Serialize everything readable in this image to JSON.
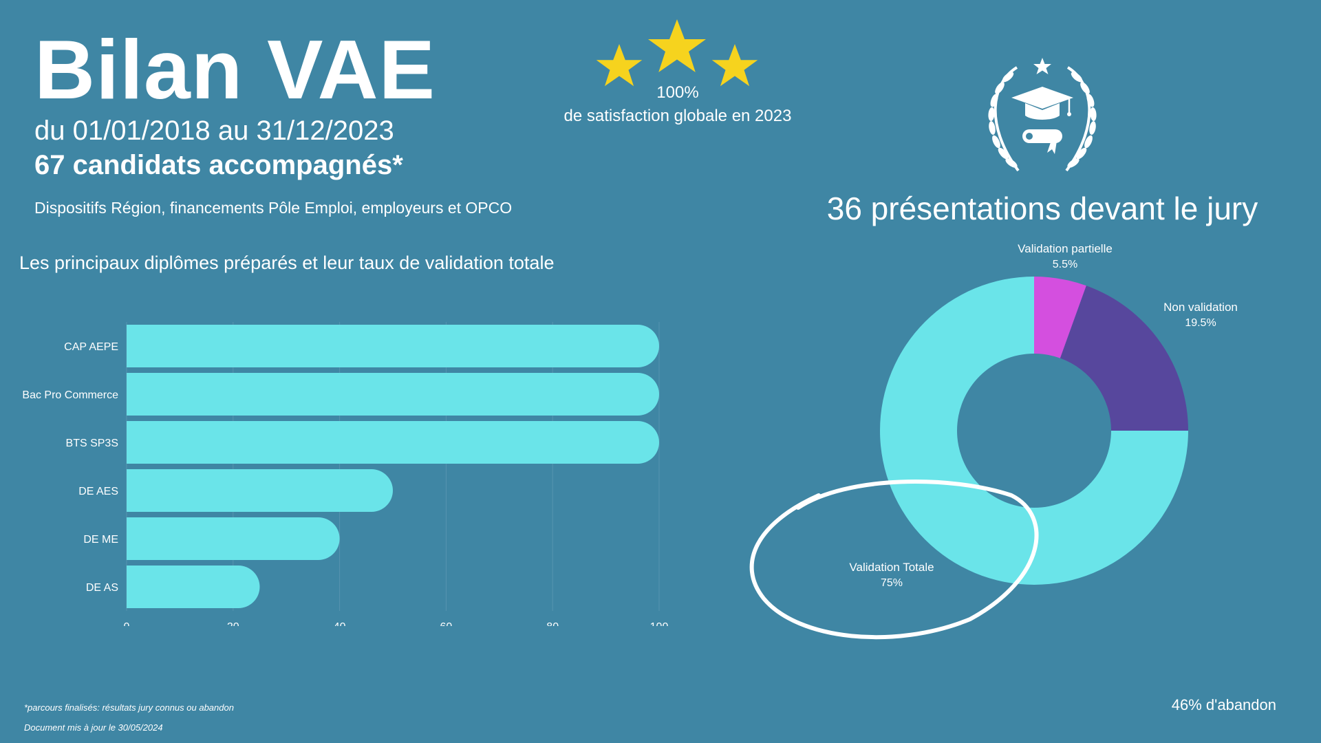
{
  "header": {
    "title": "Bilan VAE",
    "period": "du 01/01/2018 au 31/12/2023",
    "candidates": "67 candidats accompagnés*",
    "funding": "Dispositifs Région, financements Pôle Emploi, employeurs et OPCO"
  },
  "satisfaction": {
    "value": "100%",
    "label": "de satisfaction globale en 2023",
    "stars_icon": "star-icon",
    "star_color": "#F6D31E"
  },
  "jury": {
    "title": "36 présentations devant le jury",
    "icon": "graduation-laurel-icon"
  },
  "footer": {
    "note": "*parcours finalisés: résultats jury connus ou abandon",
    "updated": "Document mis à jour le 30/05/2024",
    "abandon": "46% d'abandon"
  },
  "chart_data": [
    {
      "type": "bar",
      "orientation": "horizontal",
      "title": "Les principaux diplômes préparés et leur taux de validation totale",
      "categories": [
        "CAP AEPE",
        "Bac Pro Commerce",
        "BTS SP3S",
        "DE AES",
        "DE ME",
        "DE AS"
      ],
      "values": [
        100,
        100,
        100,
        50,
        40,
        25
      ],
      "xlim": [
        0,
        100
      ],
      "xticks": [
        "0",
        "20",
        "40",
        "60",
        "80",
        "100"
      ],
      "grid": true,
      "bar_color": "#6AE4E9"
    },
    {
      "type": "pie",
      "style": "donut",
      "slices": [
        {
          "label": "Validation partielle",
          "value": 5.5,
          "value_label": "5.5%",
          "color": "#D44FDF"
        },
        {
          "label": "Non validation",
          "value": 19.5,
          "value_label": "19.5%",
          "color": "#57479D"
        },
        {
          "label": "Validation Totale",
          "value": 75,
          "value_label": "75%",
          "color": "#6AE4E9"
        }
      ]
    }
  ]
}
